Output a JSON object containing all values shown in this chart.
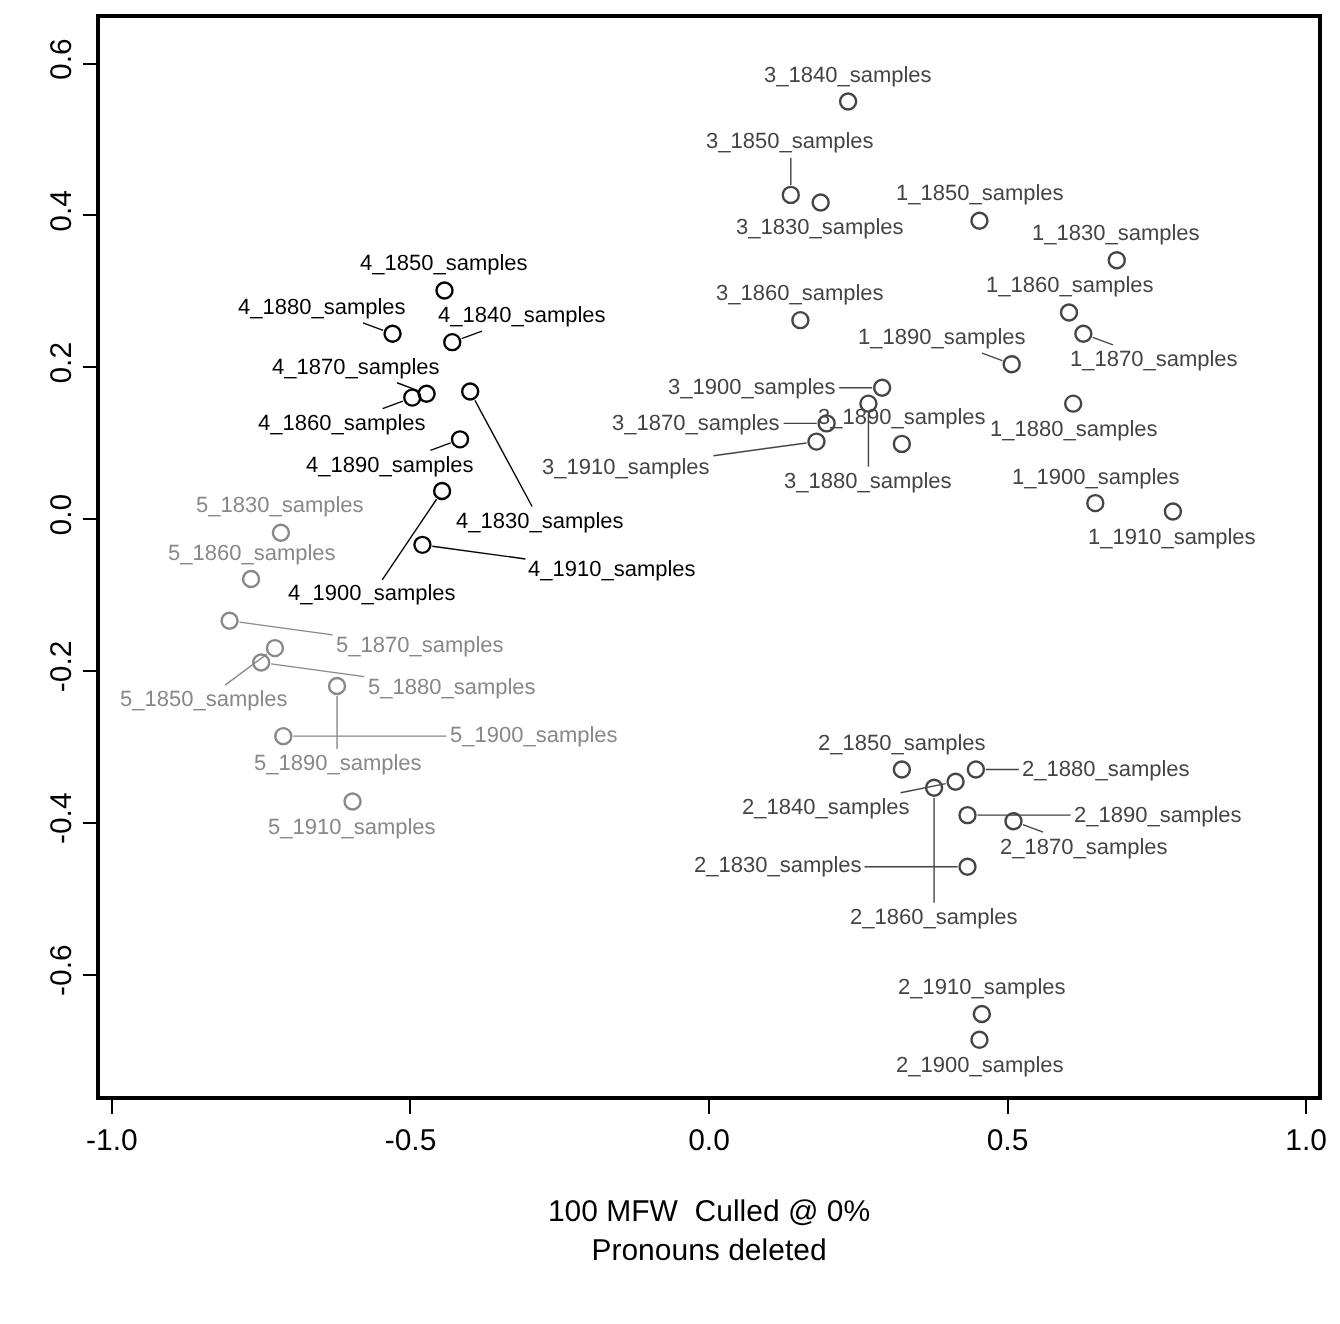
{
  "chart_data": {
    "type": "scatter",
    "xlabel": "100 MFW  Culled @ 0%\nPronouns deleted",
    "xlim": [
      -1.02,
      1.02
    ],
    "ylim": [
      -0.76,
      0.66
    ],
    "xticks": [
      {
        "value": -1,
        "label": "-1.0"
      },
      {
        "value": -0.5,
        "label": "-0.5"
      },
      {
        "value": 0,
        "label": "0.0"
      },
      {
        "value": 0.5,
        "label": "0.5"
      },
      {
        "value": 1,
        "label": "1.0"
      }
    ],
    "yticks": [
      {
        "value": -0.6,
        "label": "-0.6"
      },
      {
        "value": -0.4,
        "label": "-0.4"
      },
      {
        "value": -0.2,
        "label": "-0.2"
      },
      {
        "value": 0,
        "label": "0.0"
      },
      {
        "value": 0.2,
        "label": "0.2"
      },
      {
        "value": 0.4,
        "label": "0.4"
      },
      {
        "value": 0.6,
        "label": "0.6"
      }
    ],
    "marker": "circle",
    "series": [
      {
        "color": "#444444",
        "x": [
          0.453,
          0.683,
          0.603,
          0.627,
          0.507,
          0.61,
          0.647,
          0.777
        ],
        "values": [
          0.393,
          0.341,
          0.272,
          0.244,
          0.204,
          0.152,
          0.021,
          0.01
        ],
        "value_labels": [
          "1_1850_samples",
          "1_1830_samples",
          "1_1860_samples",
          "1_1870_samples",
          "1_1890_samples",
          "1_1880_samples",
          "1_1900_samples",
          "1_1910_samples"
        ]
      },
      {
        "color": "#444444",
        "x": [
          0.323,
          0.447,
          0.413,
          0.377,
          0.433,
          0.51,
          0.433,
          0.457,
          0.453
        ],
        "values": [
          -0.33,
          -0.33,
          -0.346,
          -0.354,
          -0.39,
          -0.398,
          -0.458,
          -0.652,
          -0.686
        ],
        "value_labels": [
          "2_1850_samples",
          "2_1880_samples",
          "2_1840_samples",
          "2_1860_samples",
          "2_1890_samples",
          "2_1870_samples",
          "2_1830_samples",
          "2_1910_samples",
          "2_1900_samples"
        ]
      },
      {
        "color": "#444444",
        "x": [
          0.233,
          0.137,
          0.187,
          0.153,
          0.29,
          0.267,
          0.197,
          0.18,
          0.323
        ],
        "values": [
          0.55,
          0.427,
          0.417,
          0.262,
          0.173,
          0.152,
          0.126,
          0.102,
          0.099
        ],
        "value_labels": [
          "3_1840_samples",
          "3_1850_samples",
          "3_1830_samples",
          "3_1860_samples",
          "3_1900_samples",
          "3_1880_samples",
          "3_1870_samples",
          "3_1910_samples",
          "3_1890_samples"
        ]
      },
      {
        "color": "#000000",
        "x": [
          -0.443,
          -0.53,
          -0.43,
          -0.497,
          -0.473,
          -0.4,
          -0.417,
          -0.447,
          -0.48
        ],
        "values": [
          0.301,
          0.244,
          0.233,
          0.16,
          0.165,
          0.168,
          0.105,
          0.037,
          -0.034
        ],
        "value_labels": [
          "4_1850_samples",
          "4_1880_samples",
          "4_1840_samples",
          "4_1860_samples",
          "4_1870_samples",
          "4_1830_samples",
          "4_1890_samples",
          "4_1900_samples",
          "4_1910_samples"
        ]
      },
      {
        "color": "#888888",
        "x": [
          -0.717,
          -0.767,
          -0.803,
          -0.727,
          -0.75,
          -0.623,
          -0.713,
          -0.597
        ],
        "values": [
          -0.018,
          -0.079,
          -0.134,
          -0.17,
          -0.189,
          -0.22,
          -0.286,
          -0.372
        ],
        "value_labels": [
          "5_1830_samples",
          "5_1860_samples",
          "5_1870_samples",
          "5_1850_samples",
          "5_1880_samples",
          "5_1890_samples",
          "5_1900_samples",
          "5_1910_samples"
        ]
      }
    ]
  }
}
